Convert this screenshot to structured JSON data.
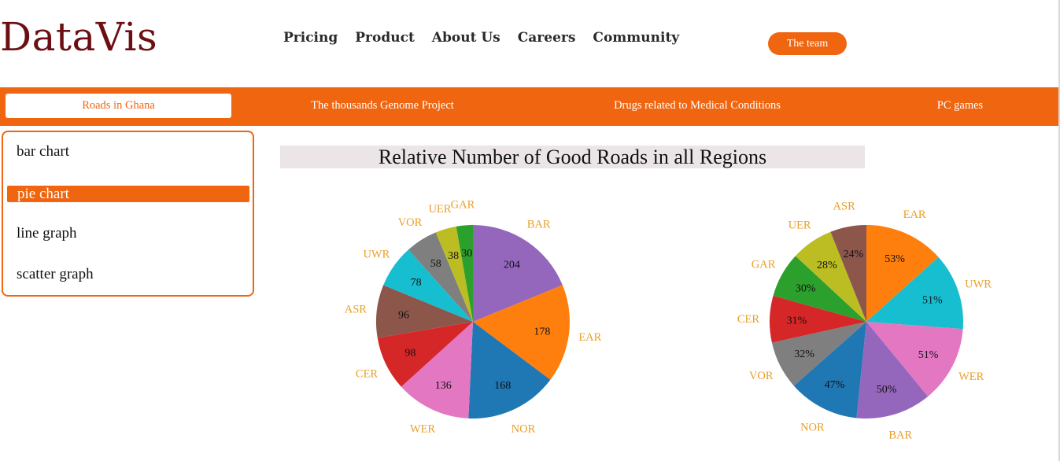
{
  "brand": {
    "name": "DataVis"
  },
  "topnav": {
    "items": [
      "Pricing",
      "Product",
      "About Us",
      "Careers",
      "Community"
    ]
  },
  "team_button": {
    "label": "The team"
  },
  "tabs": {
    "items": [
      {
        "label": "Roads in Ghana",
        "active": true
      },
      {
        "label": "The thousands Genome Project",
        "active": false
      },
      {
        "label": "Drugs related to Medical Conditions",
        "active": false
      },
      {
        "label": "PC games",
        "active": false
      }
    ]
  },
  "sidebar": {
    "items": [
      {
        "label": "bar chart",
        "active": false
      },
      {
        "label": "pie chart",
        "active": true
      },
      {
        "label": "line graph",
        "active": false
      },
      {
        "label": "scatter graph",
        "active": false
      }
    ]
  },
  "colors": {
    "accent": "#f06510",
    "brand": "#6b0f12",
    "title_bg": "#ece5e8",
    "pie_outer_label": "#e8a02a"
  },
  "chart_data": [
    {
      "type": "pie",
      "title": "Relative Number of Good Roads in all Regions",
      "slices": [
        {
          "label": "BAR",
          "value": 204,
          "color": "#9467bd"
        },
        {
          "label": "EAR",
          "value": 178,
          "color": "#ff7f0e"
        },
        {
          "label": "NOR",
          "value": 168,
          "color": "#1f77b4"
        },
        {
          "label": "WER",
          "value": 136,
          "color": "#e377c2"
        },
        {
          "label": "CER",
          "value": 98,
          "color": "#d62728"
        },
        {
          "label": "ASR",
          "value": 96,
          "color": "#8c564b"
        },
        {
          "label": "UWR",
          "value": 78,
          "color": "#17becf"
        },
        {
          "label": "VOR",
          "value": 58,
          "color": "#7f7f7f"
        },
        {
          "label": "UER",
          "value": 38,
          "color": "#bcbd22"
        },
        {
          "label": "GAR",
          "value": 30,
          "color": "#2ca02c"
        }
      ]
    },
    {
      "type": "pie",
      "slices": [
        {
          "label": "EAR",
          "value": 53,
          "display": "53%",
          "color": "#ff7f0e"
        },
        {
          "label": "UWR",
          "value": 51,
          "display": "51%",
          "color": "#17becf"
        },
        {
          "label": "WER",
          "value": 51,
          "display": "51%",
          "color": "#e377c2"
        },
        {
          "label": "BAR",
          "value": 50,
          "display": "50%",
          "color": "#9467bd"
        },
        {
          "label": "NOR",
          "value": 47,
          "display": "47%",
          "color": "#1f77b4"
        },
        {
          "label": "VOR",
          "value": 32,
          "display": "32%",
          "color": "#7f7f7f"
        },
        {
          "label": "CER",
          "value": 31,
          "display": "31%",
          "color": "#d62728"
        },
        {
          "label": "GAR",
          "value": 30,
          "display": "30%",
          "color": "#2ca02c"
        },
        {
          "label": "UER",
          "value": 28,
          "display": "28%",
          "color": "#bcbd22"
        },
        {
          "label": "ASR",
          "value": 24,
          "display": "24%",
          "color": "#8c564b"
        }
      ]
    }
  ]
}
